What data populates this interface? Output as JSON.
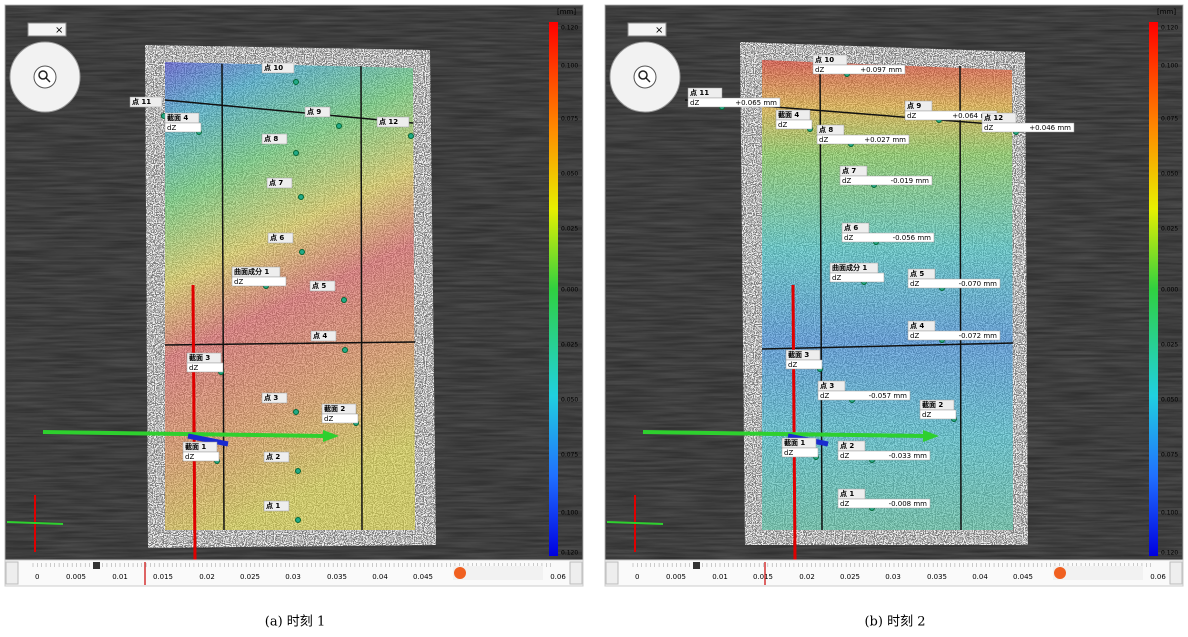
{
  "panels": [
    {
      "caption": "(a) 时刻 1",
      "unit": "[mm]",
      "close": "×",
      "scale_labels": [
        "0.120",
        "0.100",
        "0.075",
        "0.050",
        "0.025",
        "0.000",
        "0.025",
        "0.050",
        "0.075",
        "0.100",
        "0.120"
      ],
      "timeline_labels": [
        "0",
        "0.005",
        "0.01",
        "0.015",
        "0.02",
        "0.025",
        "0.03",
        "0.035",
        "0.04",
        "0.045",
        "0.06"
      ],
      "labels": [
        {
          "title": "点 10"
        },
        {
          "title": "点 11"
        },
        {
          "title": "点 9"
        },
        {
          "title": "点 12"
        },
        {
          "title": "截面 4",
          "field": "dZ"
        },
        {
          "title": "点 8"
        },
        {
          "title": "点 7"
        },
        {
          "title": "点 6"
        },
        {
          "title": "曲面成分 1",
          "field": "dZ"
        },
        {
          "title": "点 5"
        },
        {
          "title": "点 4"
        },
        {
          "title": "截面 3",
          "field": "dZ"
        },
        {
          "title": "点 3"
        },
        {
          "title": "截面 2",
          "field": "dZ"
        },
        {
          "title": "截面 1",
          "field": "dZ"
        },
        {
          "title": "点 2"
        },
        {
          "title": "点 1"
        }
      ]
    },
    {
      "caption": "(b) 时刻 2",
      "unit": "[mm]",
      "close": "×",
      "scale_labels": [
        "0.120",
        "0.100",
        "0.075",
        "0.050",
        "0.025",
        "0.000",
        "0.025",
        "0.050",
        "0.075",
        "0.100",
        "0.120"
      ],
      "timeline_labels": [
        "0",
        "0.005",
        "0.01",
        "0.015",
        "0.02",
        "0.025",
        "0.03",
        "0.035",
        "0.04",
        "0.045",
        "0.06"
      ],
      "labels": [
        {
          "title": "点 10",
          "field": "dZ",
          "value": "+0.097 mm"
        },
        {
          "title": "点 11",
          "field": "dZ",
          "value": "+0.065 mm"
        },
        {
          "title": "点 9",
          "field": "dZ",
          "value": "+0.064 mm"
        },
        {
          "title": "点 12",
          "field": "dZ",
          "value": "+0.046 mm"
        },
        {
          "title": "截面 4",
          "field": "dZ"
        },
        {
          "title": "点 8",
          "field": "dZ",
          "value": "+0.027 mm"
        },
        {
          "title": "点 7",
          "field": "dZ",
          "value": "-0.019 mm"
        },
        {
          "title": "点 6",
          "field": "dZ",
          "value": "-0.056 mm"
        },
        {
          "title": "曲面成分 1",
          "field": "dZ"
        },
        {
          "title": "点 5",
          "field": "dZ",
          "value": "-0.070 mm"
        },
        {
          "title": "点 4",
          "field": "dZ",
          "value": "-0.072 mm"
        },
        {
          "title": "截面 3",
          "field": "dZ"
        },
        {
          "title": "点 3",
          "field": "dZ",
          "value": "-0.057 mm"
        },
        {
          "title": "截面 2",
          "field": "dZ"
        },
        {
          "title": "截面 1",
          "field": "dZ"
        },
        {
          "title": "点 2",
          "field": "dZ",
          "value": "-0.033 mm"
        },
        {
          "title": "点 1",
          "field": "dZ",
          "value": "-0.008 mm"
        }
      ]
    }
  ]
}
